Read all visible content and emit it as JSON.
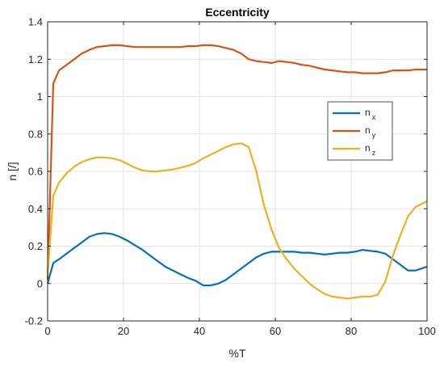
{
  "chart_data": {
    "type": "line",
    "title": "Eccentricity",
    "xlabel": "%T",
    "ylabel": "n [/]",
    "xlim": [
      0,
      100
    ],
    "ylim": [
      -0.2,
      1.4
    ],
    "xticks": [
      0,
      20,
      40,
      60,
      80,
      100
    ],
    "yticks": [
      -0.2,
      0,
      0.2,
      0.4,
      0.6,
      0.8,
      1,
      1.2,
      1.4
    ],
    "xtick_labels": [
      "0",
      "20",
      "40",
      "60",
      "80",
      "100"
    ],
    "ytick_labels": [
      "-0.2",
      "0",
      "0.2",
      "0.4",
      "0.6",
      "0.8",
      "1",
      "1.2",
      "1.4"
    ],
    "grid": true,
    "legend_position": "right",
    "series": [
      {
        "name": "n",
        "subscript": "x",
        "color": "#0072BD",
        "x": [
          0,
          1.5,
          3,
          5,
          7,
          9,
          11,
          13,
          15,
          17,
          19,
          21,
          23,
          25,
          27,
          29,
          31,
          33,
          35,
          37,
          39,
          41,
          43,
          45,
          47,
          49,
          51,
          53,
          55,
          57,
          59,
          61,
          63,
          65,
          67,
          69,
          71,
          73,
          75,
          77,
          79,
          81,
          83,
          85,
          87,
          89,
          91,
          93,
          95,
          97,
          100
        ],
        "y": [
          0.0,
          0.11,
          0.13,
          0.16,
          0.19,
          0.22,
          0.25,
          0.265,
          0.27,
          0.265,
          0.25,
          0.23,
          0.205,
          0.18,
          0.15,
          0.12,
          0.09,
          0.07,
          0.05,
          0.03,
          0.015,
          -0.01,
          -0.01,
          0.0,
          0.02,
          0.05,
          0.08,
          0.11,
          0.14,
          0.16,
          0.17,
          0.17,
          0.17,
          0.17,
          0.165,
          0.165,
          0.16,
          0.155,
          0.16,
          0.165,
          0.165,
          0.17,
          0.18,
          0.175,
          0.17,
          0.16,
          0.13,
          0.1,
          0.07,
          0.07,
          0.09
        ]
      },
      {
        "name": "n",
        "subscript": "y",
        "color": "#D95319",
        "x": [
          0,
          1.5,
          3,
          5,
          7,
          9,
          11,
          13,
          15,
          17,
          19,
          21,
          23,
          25,
          27,
          29,
          31,
          33,
          35,
          37,
          39,
          41,
          43,
          45,
          47,
          49,
          51,
          53,
          55,
          57,
          59,
          61,
          63,
          65,
          67,
          69,
          71,
          73,
          75,
          77,
          79,
          81,
          83,
          85,
          87,
          89,
          91,
          93,
          95,
          97,
          100
        ],
        "y": [
          0.02,
          1.07,
          1.14,
          1.17,
          1.2,
          1.23,
          1.25,
          1.265,
          1.27,
          1.275,
          1.275,
          1.27,
          1.265,
          1.265,
          1.265,
          1.265,
          1.265,
          1.265,
          1.265,
          1.27,
          1.27,
          1.275,
          1.275,
          1.27,
          1.26,
          1.25,
          1.23,
          1.2,
          1.19,
          1.185,
          1.18,
          1.19,
          1.185,
          1.18,
          1.17,
          1.165,
          1.155,
          1.145,
          1.14,
          1.135,
          1.13,
          1.13,
          1.125,
          1.125,
          1.125,
          1.13,
          1.14,
          1.14,
          1.14,
          1.145,
          1.145
        ]
      },
      {
        "name": "n",
        "subscript": "z",
        "color": "#EDB120",
        "x": [
          0,
          1.5,
          3,
          5,
          7,
          9,
          11,
          13,
          15,
          17,
          19,
          21,
          23,
          25,
          27,
          29,
          31,
          33,
          35,
          37,
          39,
          41,
          43,
          45,
          47,
          49,
          51,
          53,
          55,
          57,
          59,
          61,
          63,
          65,
          67,
          69,
          71,
          73,
          75,
          77,
          79,
          81,
          83,
          85,
          87,
          89,
          91,
          93,
          95,
          97,
          100
        ],
        "y": [
          0.04,
          0.47,
          0.54,
          0.59,
          0.625,
          0.65,
          0.665,
          0.675,
          0.675,
          0.67,
          0.66,
          0.64,
          0.62,
          0.605,
          0.6,
          0.6,
          0.605,
          0.61,
          0.62,
          0.63,
          0.645,
          0.67,
          0.69,
          0.71,
          0.73,
          0.745,
          0.75,
          0.73,
          0.6,
          0.42,
          0.29,
          0.19,
          0.13,
          0.08,
          0.04,
          0.0,
          -0.03,
          -0.055,
          -0.07,
          -0.075,
          -0.08,
          -0.075,
          -0.07,
          -0.07,
          -0.06,
          0.01,
          0.15,
          0.26,
          0.36,
          0.41,
          0.44
        ]
      }
    ]
  }
}
